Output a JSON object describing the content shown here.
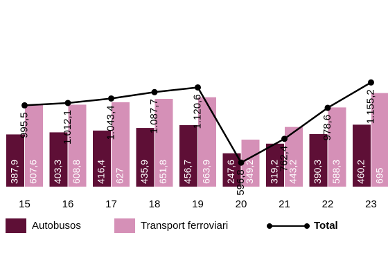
{
  "chart_data": {
    "type": "bar+line",
    "categories": [
      "15",
      "16",
      "17",
      "18",
      "19",
      "20",
      "21",
      "22",
      "23"
    ],
    "series": [
      {
        "name": "Autobusos",
        "type": "bar",
        "values": [
          387.9,
          403.3,
          416.4,
          435.9,
          456.7,
          247.6,
          319.2,
          390.3,
          460.2
        ],
        "labels": [
          "387,9",
          "403,3",
          "416,4",
          "435,9",
          "456,7",
          "247,6",
          "319,2",
          "390,3",
          "460,2"
        ],
        "color": "#5e0f36"
      },
      {
        "name": "Transport ferroviari",
        "type": "bar",
        "values": [
          607.6,
          608.8,
          627,
          651.8,
          663.9,
          349.2,
          443.2,
          588.3,
          695
        ],
        "labels": [
          "607,6",
          "608,8",
          "627",
          "651,8",
          "663,9",
          "349,2",
          "443,2",
          "588,3",
          "695"
        ],
        "color": "#d590b7"
      },
      {
        "name": "Total",
        "type": "line",
        "values": [
          995.5,
          1012.1,
          1043.4,
          1087.7,
          1120.6,
          596.8,
          762.4,
          978.6,
          1155.2
        ],
        "labels": [
          "995,5",
          "1.012,1",
          "1.043,4",
          "1.087,7",
          "1.120,6",
          "596,8",
          "762,4",
          "978,6",
          "1.155,2"
        ],
        "color": "#000000"
      }
    ],
    "legend": {
      "position": "bottom",
      "items": [
        "Autobusos",
        "Transport ferroviari",
        "Total"
      ]
    },
    "grid": false
  }
}
